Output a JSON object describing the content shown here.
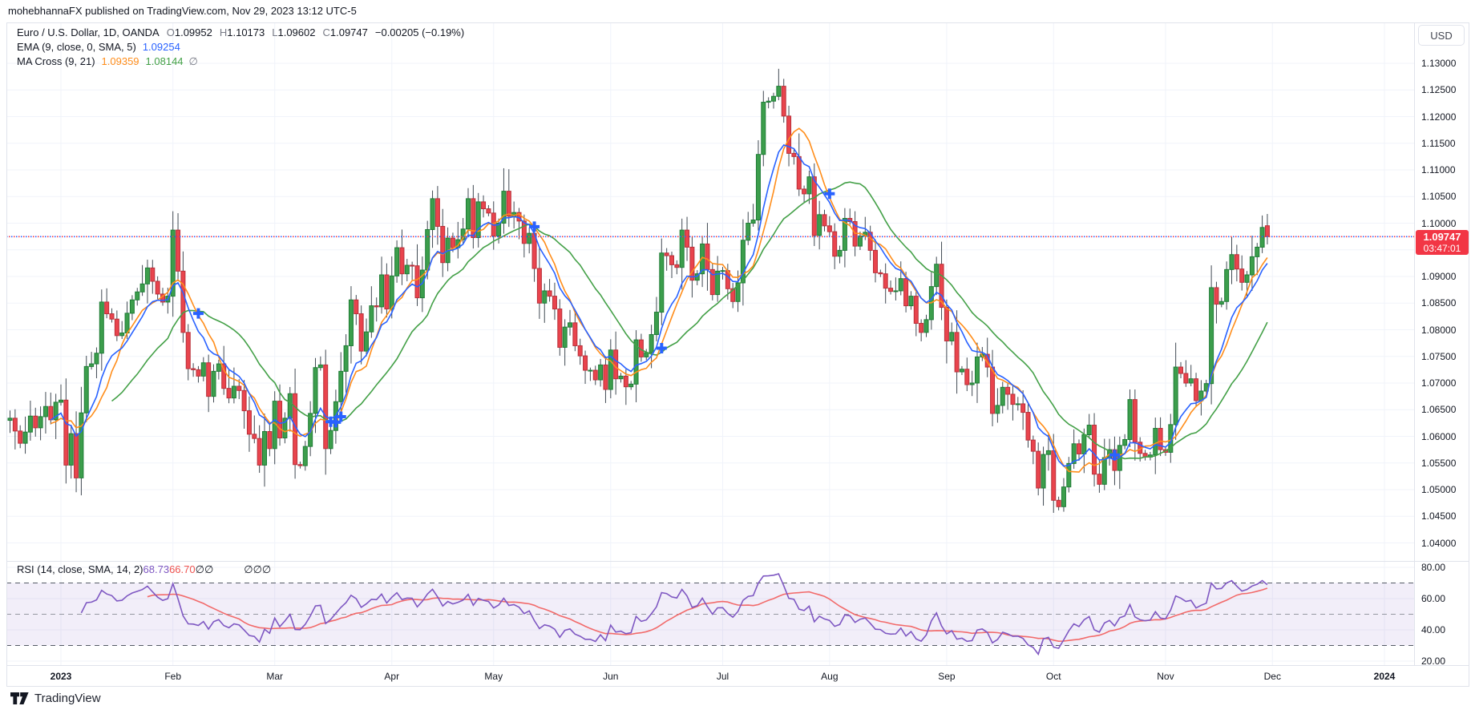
{
  "publish_bar": {
    "text": "mohebhannaFX published on TradingView.com, Nov 29, 2023 13:12 UTC-5"
  },
  "legend": {
    "symbol_row": {
      "title": "Euro / U.S. Dollar, 1D, OANDA",
      "ohlc": [
        {
          "k": "O",
          "v": "1.09952"
        },
        {
          "k": "H",
          "v": "1.10173"
        },
        {
          "k": "L",
          "v": "1.09602"
        },
        {
          "k": "C",
          "v": "1.09747"
        }
      ],
      "change": "−0.00205 (−0.19%)"
    },
    "ema_row": {
      "label": "EMA (9, close, 0, SMA, 5)",
      "value": "1.09254",
      "value_color": "#2962ff"
    },
    "macross_row": {
      "label": "MA Cross (9, 21)",
      "values": [
        {
          "v": "1.09359",
          "color": "#ff8d1a"
        },
        {
          "v": "1.08144",
          "color": "#43a047"
        }
      ],
      "empties": [
        "∅"
      ]
    }
  },
  "rsi_row": {
    "label": "RSI (14, close, SMA, 14, 2)",
    "values": [
      {
        "v": "68.73",
        "color": "#7e57c2"
      },
      {
        "v": "66.70",
        "color": "#ef5350"
      }
    ],
    "empties_group1": [
      "∅",
      "∅"
    ],
    "empties_group2": [
      "∅",
      "∅",
      "∅"
    ]
  },
  "price_axis": {
    "currency": "USD",
    "last_price": "1.09747",
    "countdown": "03:47:01"
  },
  "watermark": {
    "brand": "TradingView"
  },
  "colors": {
    "up_fill": "#3c9e4c",
    "up_border": "#1e7c36",
    "down_fill": "#e9444d",
    "down_border": "#b8303a",
    "wick": "#414a53",
    "ema": "#2962ff",
    "sma_fast": "#ff8d1a",
    "sma_slow": "#43a047",
    "rsi": "#7e57c2",
    "rsi_ma": "#f26a6a",
    "band_fill": "rgba(126,87,194,0.10)",
    "band_edge_dash": "#555b66",
    "band_mid_dash": "#9598a1",
    "grid": "#f0f3fa",
    "frame": "#e0e3eb",
    "price_line_a": "#2962ff",
    "price_line_b": "#f23645",
    "badge_bg": "#f23645",
    "cross_marker": "#2962ff",
    "axis_text": "#131722"
  },
  "chart_data": {
    "type": "candlestick",
    "title": "Euro / U.S. Dollar, 1D, OANDA",
    "symbol": "EUR/USD",
    "timeframe": "1D",
    "exchange": "OANDA",
    "ylim": [
      1.0366,
      1.1377
    ],
    "y_ticks": [
      1.13,
      1.125,
      1.12,
      1.115,
      1.11,
      1.105,
      1.1,
      1.095,
      1.09,
      1.085,
      1.08,
      1.075,
      1.07,
      1.065,
      1.06,
      1.055,
      1.05,
      1.045,
      1.04
    ],
    "x_ticks": [
      {
        "label": "2023",
        "bar": 10,
        "bold": true
      },
      {
        "label": "Feb",
        "bar": 32,
        "bold": false
      },
      {
        "label": "Mar",
        "bar": 52,
        "bold": false
      },
      {
        "label": "Apr",
        "bar": 75,
        "bold": false
      },
      {
        "label": "May",
        "bar": 95,
        "bold": false
      },
      {
        "label": "Jun",
        "bar": 118,
        "bold": false
      },
      {
        "label": "Jul",
        "bar": 140,
        "bold": false
      },
      {
        "label": "Aug",
        "bar": 161,
        "bold": false
      },
      {
        "label": "Sep",
        "bar": 184,
        "bold": false
      },
      {
        "label": "Oct",
        "bar": 205,
        "bold": false
      },
      {
        "label": "Nov",
        "bar": 227,
        "bold": false
      },
      {
        "label": "Dec",
        "bar": 248,
        "bold": false
      },
      {
        "label": "2024",
        "bar": 270,
        "bold": true
      }
    ],
    "price_line": 1.09747,
    "last_bar": {
      "open": 1.09952,
      "high": 1.10173,
      "low": 1.09602,
      "close": 1.09747,
      "change": -0.00205,
      "change_pct": -0.19
    },
    "first_open": 1.063,
    "closes": [
      1.0634,
      1.061,
      1.0587,
      1.0608,
      1.0638,
      1.0616,
      1.0637,
      1.0656,
      1.0631,
      1.0664,
      1.0668,
      1.0546,
      1.0605,
      1.0522,
      1.0644,
      1.0731,
      1.0736,
      1.0756,
      1.0852,
      1.083,
      1.082,
      1.0789,
      1.0794,
      1.0831,
      1.0856,
      1.0871,
      1.0886,
      1.0916,
      1.0891,
      1.0867,
      1.0852,
      1.0863,
      1.0987,
      1.091,
      1.0795,
      1.0727,
      1.0725,
      1.0713,
      1.0738,
      1.0675,
      1.0722,
      1.0736,
      1.069,
      1.0672,
      1.0694,
      1.0686,
      1.0648,
      1.0604,
      1.0596,
      1.0546,
      1.0609,
      1.0577,
      1.0666,
      1.0597,
      1.0634,
      1.068,
      1.0547,
      1.0545,
      1.0581,
      1.0643,
      1.0729,
      1.0734,
      1.0577,
      1.0611,
      1.0665,
      1.0722,
      1.077,
      1.0856,
      1.083,
      1.076,
      1.0796,
      1.0845,
      1.0843,
      1.0903,
      1.0839,
      1.0901,
      1.0954,
      1.0905,
      1.0921,
      1.092,
      1.086,
      1.0912,
      1.0988,
      1.1046,
      1.0994,
      1.0926,
      1.0972,
      1.0954,
      1.0969,
      1.0989,
      1.1046,
      1.0973,
      1.104,
      1.1027,
      1.1019,
      1.0976,
      1.1,
      1.106,
      1.1013,
      1.102,
      1.1004,
      1.0962,
      1.0981,
      1.0915,
      1.085,
      1.0873,
      1.0863,
      1.0839,
      1.0767,
      1.0805,
      1.0813,
      1.077,
      1.0751,
      1.0724,
      1.0724,
      1.0706,
      1.0734,
      1.0688,
      1.0762,
      1.0708,
      1.0713,
      1.0693,
      1.0698,
      1.0781,
      1.0749,
      1.0757,
      1.0791,
      1.0833,
      1.0944,
      1.0939,
      1.0922,
      1.0917,
      1.0987,
      1.0955,
      1.0893,
      1.0905,
      1.0961,
      1.0913,
      1.0866,
      1.091,
      1.0911,
      1.0877,
      1.0853,
      1.0888,
      1.0968,
      1.1,
      1.1006,
      1.1129,
      1.1227,
      1.1229,
      1.1238,
      1.1257,
      1.1201,
      1.1131,
      1.1125,
      1.1064,
      1.1055,
      1.1087,
      1.0977,
      1.1016,
      1.0995,
      1.0984,
      1.0938,
      1.0949,
      1.1009,
      1.1003,
      1.0957,
      1.0976,
      1.0983,
      1.0949,
      1.0907,
      1.0905,
      1.0878,
      1.0872,
      1.0873,
      1.0896,
      1.0845,
      1.0863,
      1.0812,
      1.0795,
      1.0819,
      1.0881,
      1.0923,
      1.0842,
      1.0779,
      1.0795,
      1.0721,
      1.0726,
      1.0697,
      1.07,
      1.0749,
      1.0754,
      1.073,
      1.0643,
      1.0658,
      1.0692,
      1.0679,
      1.066,
      1.0661,
      1.0645,
      1.0593,
      1.0572,
      1.0503,
      1.0566,
      1.0573,
      1.048,
      1.0468,
      1.0505,
      1.0549,
      1.0586,
      1.0567,
      1.0603,
      1.0621,
      1.0529,
      1.051,
      1.056,
      1.0575,
      1.0536,
      1.0583,
      1.0594,
      1.0669,
      1.0589,
      1.0568,
      1.0561,
      1.0565,
      1.0615,
      1.0575,
      1.057,
      1.0622,
      1.073,
      1.0718,
      1.07,
      1.0708,
      1.0667,
      1.0685,
      1.0699,
      1.0879,
      1.0848,
      1.0853,
      1.0913,
      1.0941,
      1.0914,
      1.0889,
      1.0903,
      1.0937,
      1.0955,
      1.0992,
      1.09747
    ],
    "overlays": [
      {
        "name": "EMA",
        "length": 9,
        "color": "#2962ff",
        "last_value": 1.09254
      },
      {
        "name": "SMA (MA Cross fast)",
        "length": 9,
        "color": "#ff8d1a",
        "last_value": 1.09359
      },
      {
        "name": "SMA (MA Cross slow)",
        "length": 21,
        "color": "#43a047",
        "last_value": 1.08144
      }
    ],
    "rsi": {
      "length": 14,
      "smoothing": "SMA 14",
      "last_value": 68.73,
      "ma_last_value": 66.7,
      "band": [
        30,
        70
      ],
      "mid": 50,
      "scale_ticks": [
        80,
        60,
        40,
        20
      ]
    },
    "legend_position": "top-left",
    "grid": true
  }
}
